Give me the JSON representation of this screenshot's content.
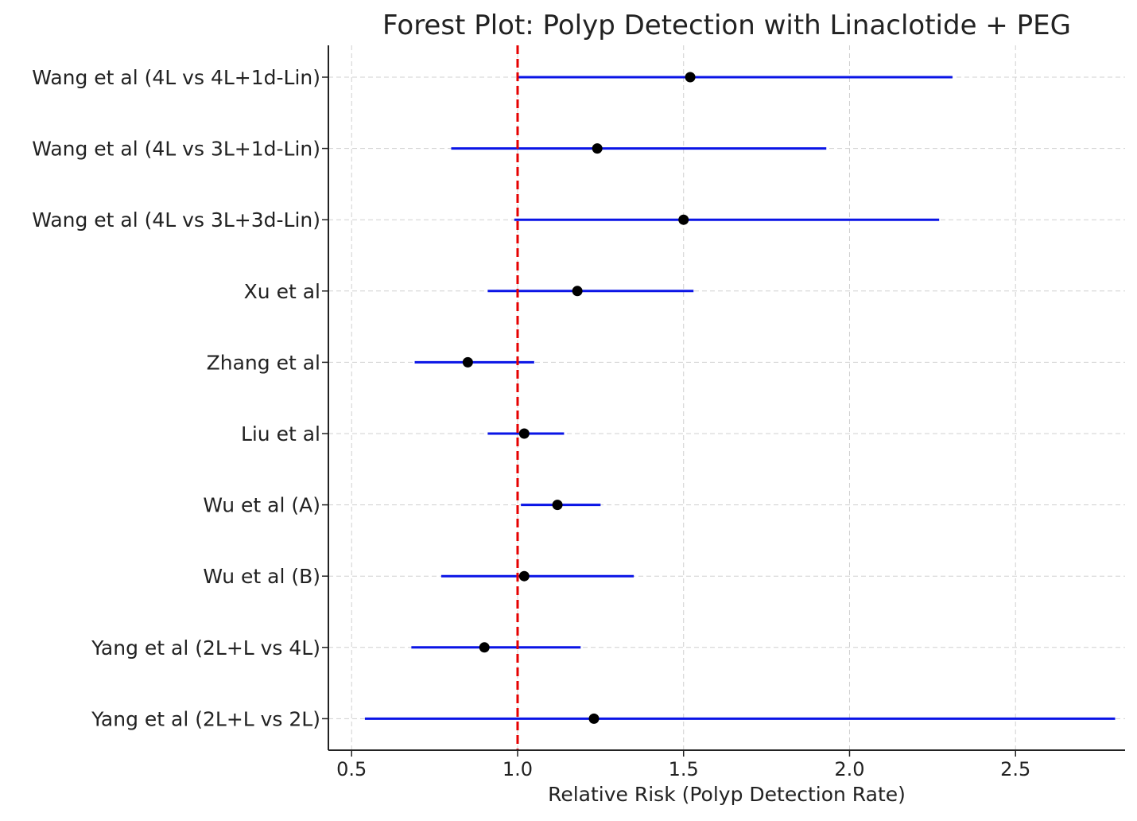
{
  "chart_data": {
    "type": "forest",
    "title": "Forest Plot: Polyp Detection with Linaclotide + PEG",
    "xlabel": "Relative Risk (Polyp Detection Rate)",
    "ylabel": "",
    "xlim": [
      0.43,
      2.83
    ],
    "xticks": [
      0.5,
      1.0,
      1.5,
      2.0,
      2.5
    ],
    "xtick_labels": [
      "0.5",
      "1.0",
      "1.5",
      "2.0",
      "2.5"
    ],
    "reference_line": 1.0,
    "grid": true,
    "studies": [
      {
        "label": "Wang et al (4L vs 4L+1d-Lin)",
        "rr": 1.52,
        "ci_low": 1.0,
        "ci_high": 2.31
      },
      {
        "label": "Wang et al (4L vs 3L+1d-Lin)",
        "rr": 1.24,
        "ci_low": 0.8,
        "ci_high": 1.93
      },
      {
        "label": "Wang et al (4L vs 3L+3d-Lin)",
        "rr": 1.5,
        "ci_low": 0.99,
        "ci_high": 2.27
      },
      {
        "label": "Xu et al",
        "rr": 1.18,
        "ci_low": 0.91,
        "ci_high": 1.53
      },
      {
        "label": "Zhang et al",
        "rr": 0.85,
        "ci_low": 0.69,
        "ci_high": 1.05
      },
      {
        "label": "Liu et al",
        "rr": 1.02,
        "ci_low": 0.91,
        "ci_high": 1.14
      },
      {
        "label": "Wu et al (A)",
        "rr": 1.12,
        "ci_low": 1.01,
        "ci_high": 1.25
      },
      {
        "label": "Wu et al (B)",
        "rr": 1.02,
        "ci_low": 0.77,
        "ci_high": 1.35
      },
      {
        "label": "Yang et al (2L+L vs 4L)",
        "rr": 0.9,
        "ci_low": 0.68,
        "ci_high": 1.19
      },
      {
        "label": "Yang et al (2L+L vs 2L)",
        "rr": 1.23,
        "ci_low": 0.54,
        "ci_high": 2.8
      }
    ],
    "colors": {
      "ci_line": "#0a14e6",
      "point": "#000000",
      "reference": "#e60000",
      "grid": "#d0d0d0",
      "axis": "#222222"
    }
  }
}
